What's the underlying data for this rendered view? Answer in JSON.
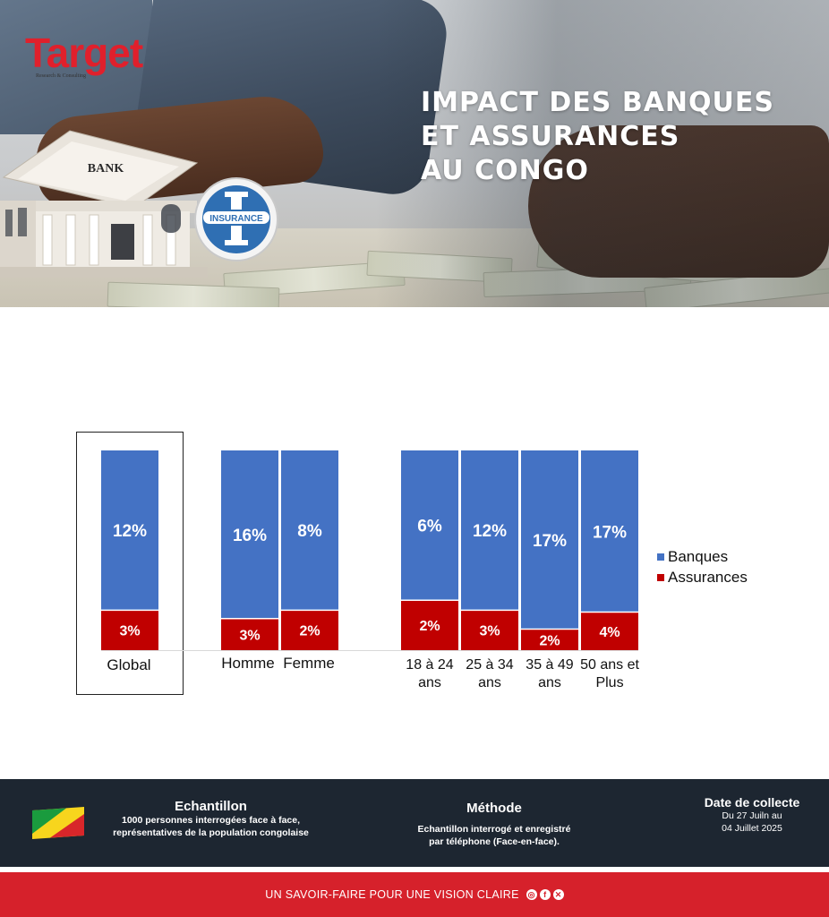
{
  "header": {
    "logo_text": "Target",
    "logo_subtitle": "Research & Consulting",
    "title_lines": [
      "IMPACT DES BANQUES",
      "ET ASSURANCES",
      "AU CONGO"
    ],
    "bank_sign": "BANK",
    "insurance_label": "INSURANCE"
  },
  "chart_data": {
    "type": "bar",
    "stacked": true,
    "title": "",
    "categories": [
      "Global",
      "Homme",
      "Femme",
      "18 à 24 ans",
      "25 à 34 ans",
      "35 à 49 ans",
      "50 ans et Plus"
    ],
    "series": [
      {
        "name": "Banques",
        "color": "#4472c4",
        "values": [
          12,
          16,
          8,
          6,
          12,
          17,
          17
        ],
        "labels": [
          "12%",
          "16%",
          "8%",
          "6%",
          "12%",
          "17%",
          "17%"
        ]
      },
      {
        "name": "Assurances",
        "color": "#c00000",
        "values": [
          3,
          3,
          2,
          2,
          3,
          2,
          4
        ],
        "labels": [
          "3%",
          "3%",
          "2%",
          "2%",
          "3%",
          "2%",
          "4%"
        ]
      }
    ],
    "percent_of_total": true,
    "legend": "right",
    "grid": false
  },
  "footer": {
    "sample": {
      "title": "Echantillon",
      "lines": [
        "1000 personnes interrogées face à face,",
        "représentatives de la population congolaise"
      ]
    },
    "method": {
      "title": "Méthode",
      "lines": [
        "Echantillon interrogé et enregistré",
        "par téléphone (Face-en-face)."
      ]
    },
    "dates": {
      "title": "Date de collecte",
      "lines": [
        "Du 27 Juiln au",
        "04 Juillet 2025"
      ]
    },
    "tagline": "UN SAVOIR-FAIRE POUR UNE VISION CLAIRE",
    "social_icons": [
      "instagram-icon",
      "facebook-icon",
      "x-icon"
    ]
  },
  "colors": {
    "banques": "#4472c4",
    "assurances": "#c00000",
    "footer_bg": "#1d2631",
    "footer_band": "#d6212b"
  }
}
